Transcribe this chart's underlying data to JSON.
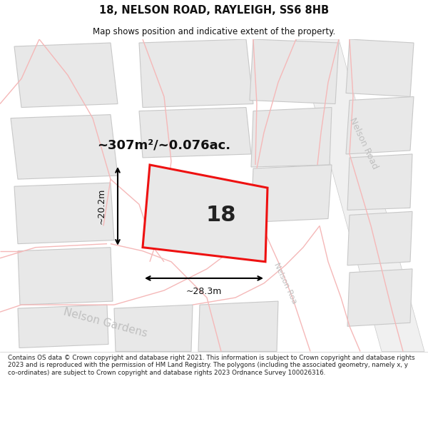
{
  "title": "18, NELSON ROAD, RAYLEIGH, SS6 8HB",
  "subtitle": "Map shows position and indicative extent of the property.",
  "area_text": "~307m²/~0.076ac.",
  "dim_width": "~28.3m",
  "dim_height": "~20.2m",
  "property_number": "18",
  "footer": "Contains OS data © Crown copyright and database right 2021. This information is subject to Crown copyright and database rights 2023 and is reproduced with the permission of HM Land Registry. The polygons (including the associated geometry, namely x, y co-ordinates) are subject to Crown copyright and database rights 2023 Ordnance Survey 100026316.",
  "bg_color": "#ffffff",
  "map_bg": "#ffffff",
  "pink_line": "#f5b8b8",
  "red_outline": "#ee1111",
  "block_fill": "#e8e8e8",
  "block_edge": "#c8c8c8",
  "road_fill": "#f0f0f0",
  "street_label_color": "#c0c0c0",
  "title_color": "#111111",
  "footer_color": "#222222"
}
